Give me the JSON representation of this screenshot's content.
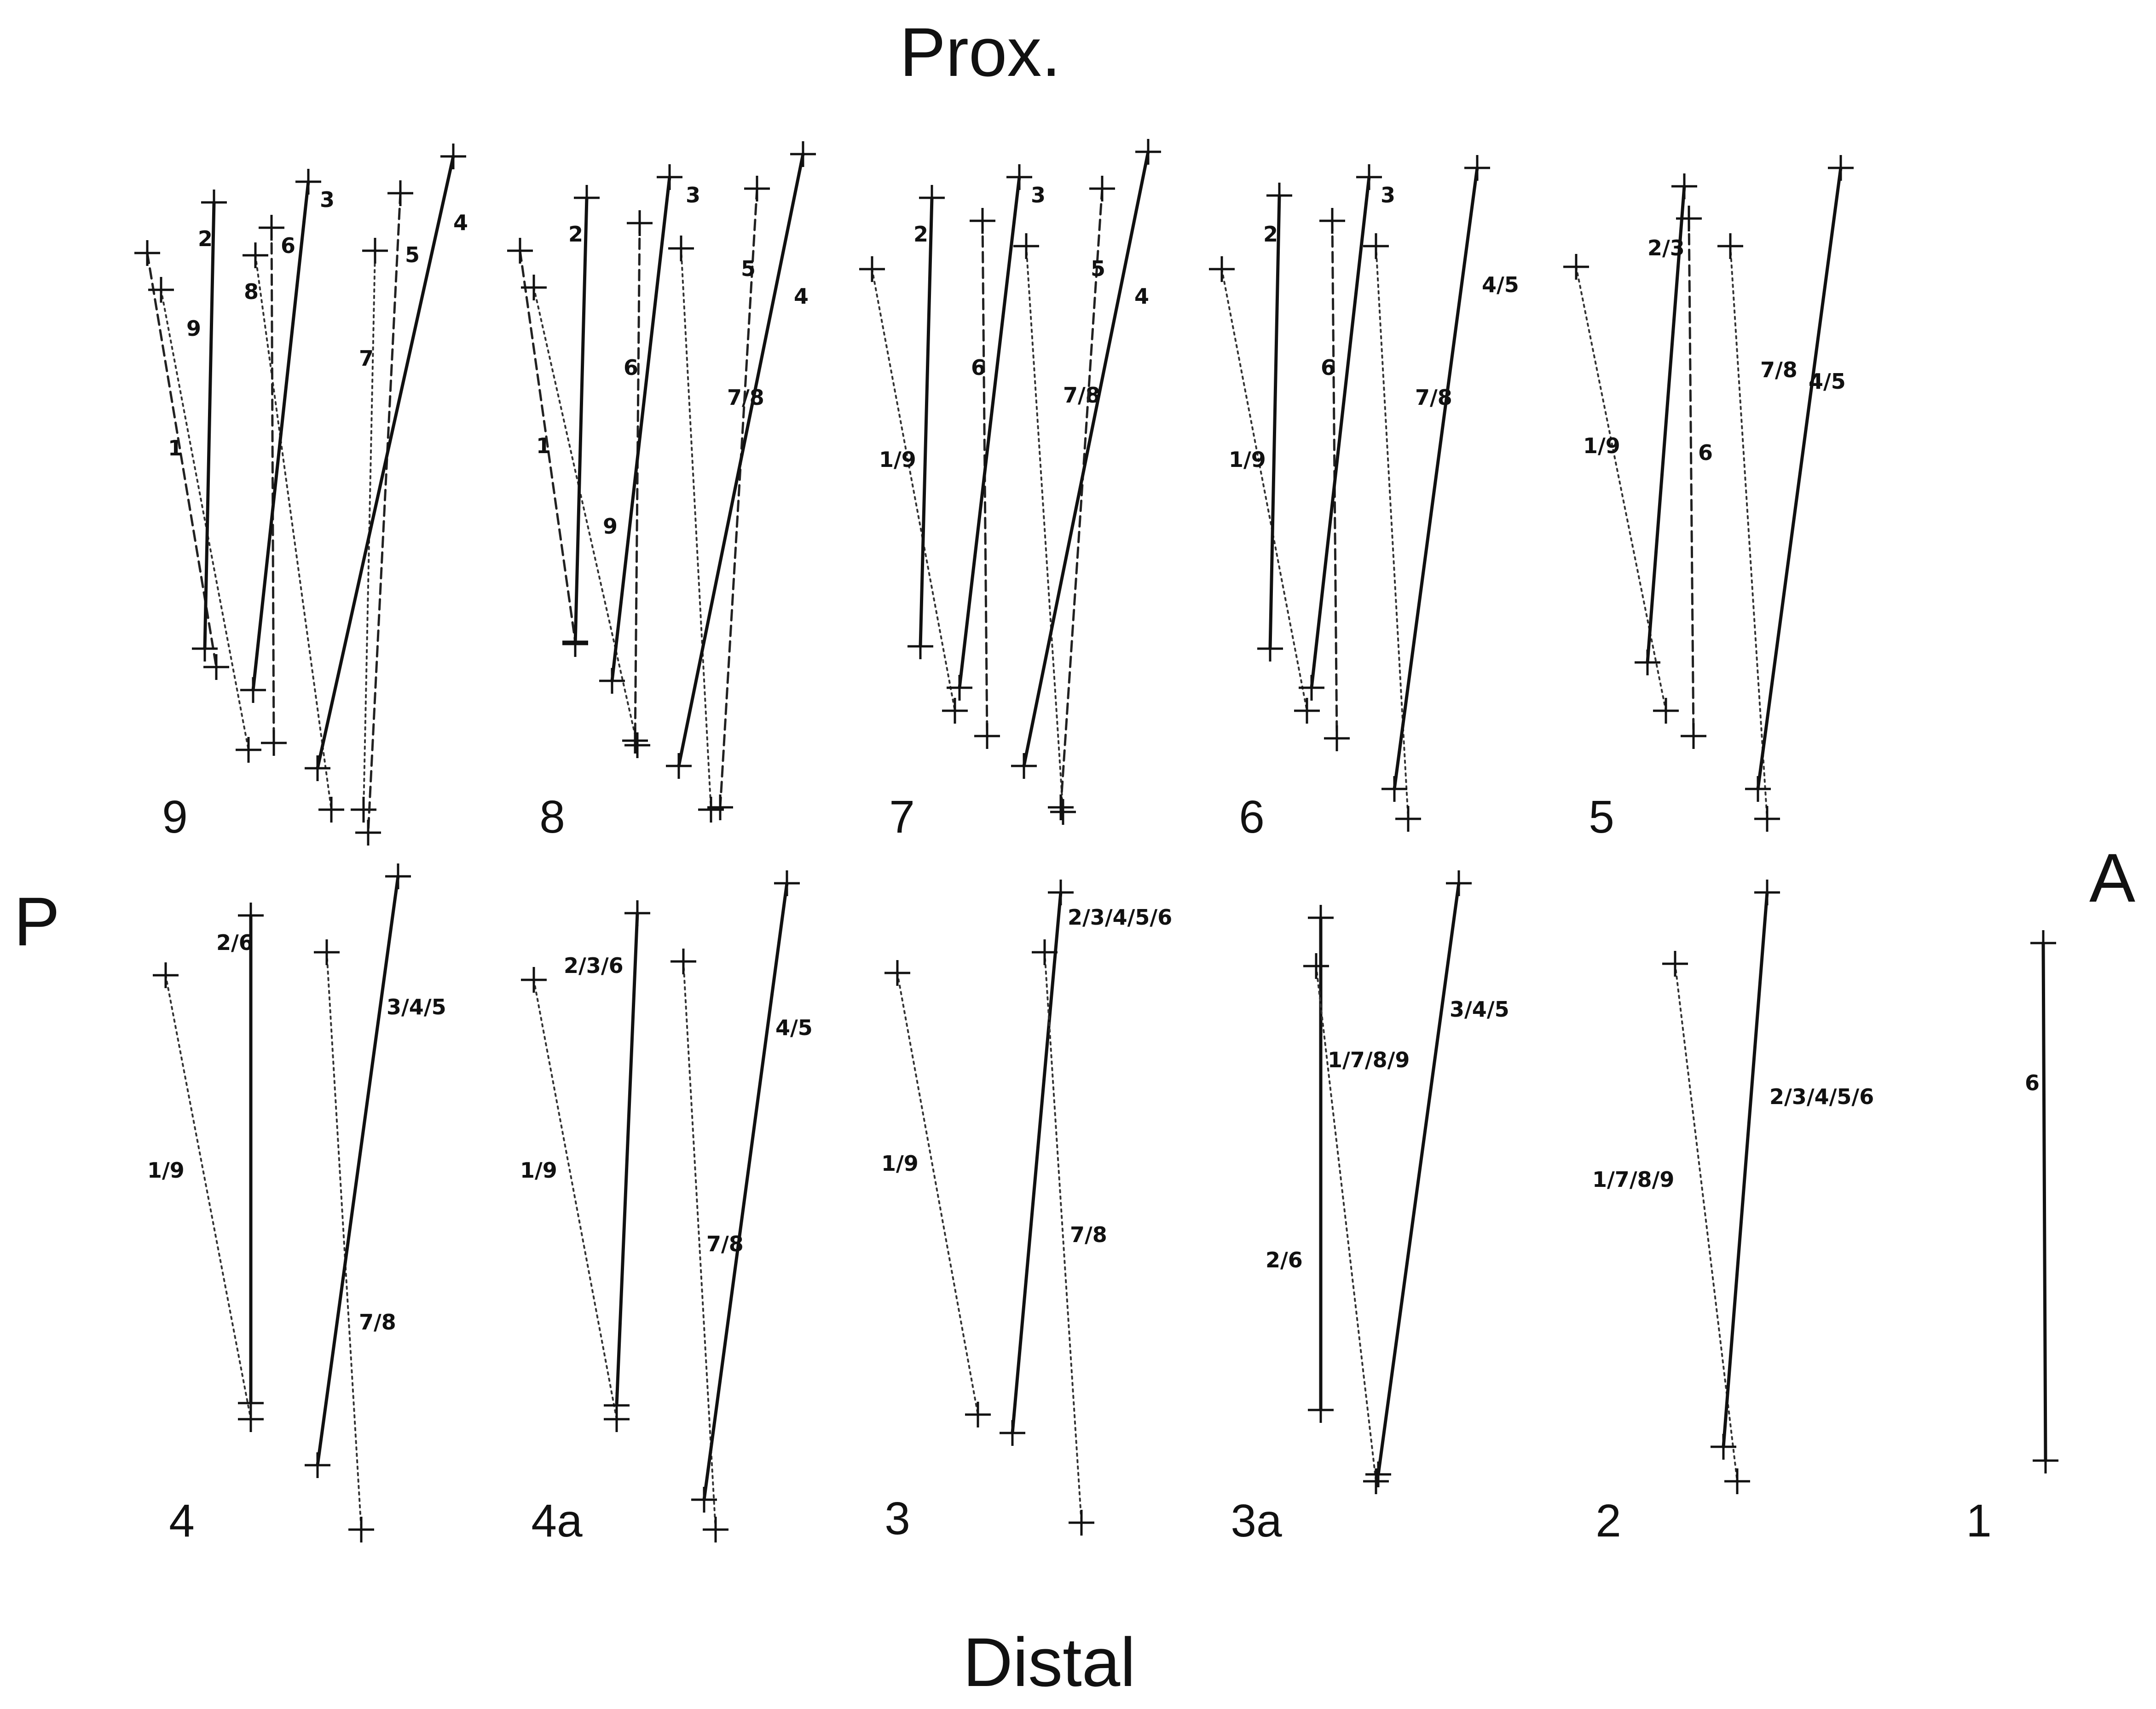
{
  "figure": {
    "axes": {
      "top": "Prox.",
      "bottom": "Distal",
      "left": "P",
      "right": "A"
    },
    "panels": [
      {
        "id": "9",
        "label": "9",
        "segments": [
          {
            "label": "1",
            "style": "dashed"
          },
          {
            "label": "9",
            "style": "dotted"
          },
          {
            "label": "2",
            "style": "solid"
          },
          {
            "label": "8",
            "style": "dotted"
          },
          {
            "label": "6",
            "style": "dashed"
          },
          {
            "label": "3",
            "style": "solid"
          },
          {
            "label": "7",
            "style": "dotted"
          },
          {
            "label": "5",
            "style": "dashed"
          },
          {
            "label": "4",
            "style": "solid"
          }
        ]
      },
      {
        "id": "8",
        "label": "8",
        "segments": [
          {
            "label": "1",
            "style": "dashed"
          },
          {
            "label": "9",
            "style": "dotted"
          },
          {
            "label": "2",
            "style": "solid"
          },
          {
            "label": "6",
            "style": "dashed"
          },
          {
            "label": "3",
            "style": "solid"
          },
          {
            "label": "7/8",
            "style": "dotted"
          },
          {
            "label": "5",
            "style": "dashed"
          },
          {
            "label": "4",
            "style": "solid"
          }
        ]
      },
      {
        "id": "7",
        "label": "7",
        "segments": [
          {
            "label": "1/9",
            "style": "dotted"
          },
          {
            "label": "2",
            "style": "solid"
          },
          {
            "label": "6",
            "style": "dashed"
          },
          {
            "label": "3",
            "style": "solid"
          },
          {
            "label": "7/8",
            "style": "dotted"
          },
          {
            "label": "5",
            "style": "dashed"
          },
          {
            "label": "4",
            "style": "solid"
          }
        ]
      },
      {
        "id": "6",
        "label": "6",
        "segments": [
          {
            "label": "1/9",
            "style": "dotted"
          },
          {
            "label": "2",
            "style": "solid"
          },
          {
            "label": "6",
            "style": "dashed"
          },
          {
            "label": "3",
            "style": "solid"
          },
          {
            "label": "7/8",
            "style": "dotted"
          },
          {
            "label": "4/5",
            "style": "solid"
          }
        ]
      },
      {
        "id": "5",
        "label": "5",
        "segments": [
          {
            "label": "1/9",
            "style": "dotted"
          },
          {
            "label": "2/3",
            "style": "solid"
          },
          {
            "label": "6",
            "style": "dashed"
          },
          {
            "label": "7/8",
            "style": "dotted"
          },
          {
            "label": "4/5",
            "style": "solid"
          }
        ]
      },
      {
        "id": "4",
        "label": "4",
        "segments": [
          {
            "label": "1/9",
            "style": "dotted"
          },
          {
            "label": "2/6",
            "style": "solid"
          },
          {
            "label": "7/8",
            "style": "dotted"
          },
          {
            "label": "3/4/5",
            "style": "solid"
          }
        ]
      },
      {
        "id": "4a",
        "label": "4a",
        "segments": [
          {
            "label": "1/9",
            "style": "dotted"
          },
          {
            "label": "2/3/6",
            "style": "solid"
          },
          {
            "label": "7/8",
            "style": "dotted"
          },
          {
            "label": "4/5",
            "style": "solid"
          }
        ]
      },
      {
        "id": "3",
        "label": "3",
        "segments": [
          {
            "label": "1/9",
            "style": "dotted"
          },
          {
            "label": "2/3/4/5/6",
            "style": "solid"
          },
          {
            "label": "7/8",
            "style": "dotted"
          }
        ]
      },
      {
        "id": "3a",
        "label": "3a",
        "segments": [
          {
            "label": "2/6",
            "style": "solid"
          },
          {
            "label": "1/7/8/9",
            "style": "dotted"
          },
          {
            "label": "3/4/5",
            "style": "solid"
          }
        ]
      },
      {
        "id": "2",
        "label": "2",
        "segments": [
          {
            "label": "1/7/8/9",
            "style": "dotted"
          },
          {
            "label": "2/3/4/5/6",
            "style": "solid"
          }
        ]
      },
      {
        "id": "1",
        "label": "1",
        "segments": [
          {
            "label": "6",
            "style": "solid"
          }
        ]
      }
    ]
  }
}
